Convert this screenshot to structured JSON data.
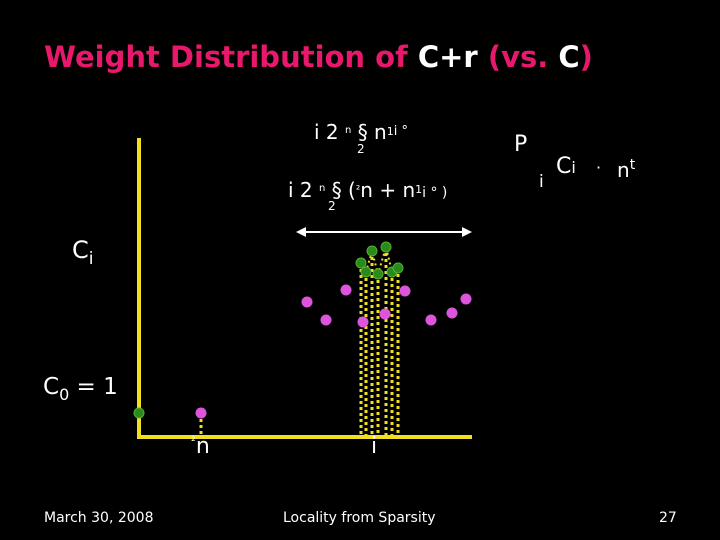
{
  "slide": {
    "title_pink_1": "Weight Distribution of ",
    "title_white_1": "C+r",
    "title_pink_2": " (vs. ",
    "title_white_2": "C",
    "title_pink_3": ")"
  },
  "labels": {
    "top_formula_1_main": "i 2",
    "top_formula_1_sub": "n",
    "top_formula_1_sub2": "2",
    "top_formula_1_rest": "§ n",
    "top_formula_1_sup": "1",
    "top_formula_1_tail": "i  °",
    "top_formula_2_main": "i 2",
    "top_formula_2_sub": "n",
    "top_formula_2_sub2": "2",
    "top_formula_2_rest": "§ (",
    "top_formula_2_sup": "²",
    "top_formula_2_mid": "n + n",
    "top_formula_2_sup2": "1",
    "top_formula_2_tail": "i  ° )",
    "sum_symbol": "P",
    "sum_index": "i",
    "sum_ci": "C",
    "sum_ci_sub": "i",
    "sum_dot": "·",
    "sum_nt": "n",
    "sum_nt_sup": "t",
    "ci_axis": "C",
    "ci_axis_sub": "i",
    "c0_label": "C",
    "c0_sub": "0",
    "c0_value": " =  1",
    "x_label_1": "n",
    "x_label_1_prefix": "²",
    "x_label_2": "i"
  },
  "footer": {
    "date": "March 30, 2008",
    "center": "Locality from Sparsity",
    "page": "27"
  },
  "colors": {
    "background": "#000000",
    "title_pink": "#e8186c",
    "axis": "#f0e020",
    "magenta_dot": "#dd55dd",
    "green_dot": "#2a8a1a",
    "arrow": "#ffffff"
  },
  "chart_data": {
    "type": "scatter",
    "series": [
      {
        "values": []
      },
      {
        "values": []
      }
    ]
  }
}
